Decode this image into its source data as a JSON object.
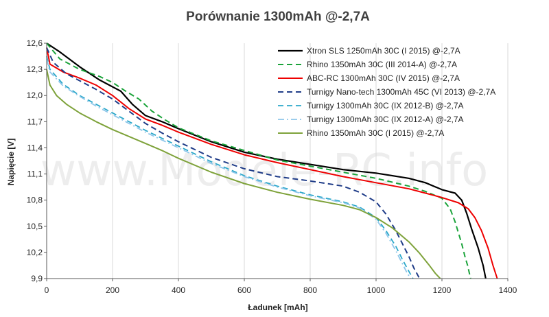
{
  "chart_data": {
    "type": "line",
    "title": "Porównanie 1300mAh @-2,7A",
    "xlabel": "Ładunek [mAh]",
    "ylabel": "Napięcie [V]",
    "xlim": [
      0,
      1400
    ],
    "ylim": [
      9.9,
      12.6
    ],
    "xticks": [
      0,
      200,
      400,
      600,
      800,
      1000,
      1200,
      1400
    ],
    "xtick_labels": [
      "0",
      "200",
      "400",
      "600",
      "800",
      "1000",
      "1200",
      "1400"
    ],
    "yticks": [
      9.9,
      10.2,
      10.5,
      10.8,
      11.1,
      11.4,
      11.7,
      12.0,
      12.3,
      12.6
    ],
    "ytick_labels": [
      "9,9",
      "10,2",
      "10,5",
      "10,8",
      "11,1",
      "11,4",
      "11,7",
      "12,0",
      "12,3",
      "12,6"
    ],
    "grid": "vertical",
    "legend_position": "top-right",
    "watermark": "www.Modele-RC.info",
    "series": [
      {
        "name": "Xtron SLS 1250mAh 30C (I 2015) @-2,7A",
        "color": "#000000",
        "dash": "solid",
        "width": 2.2,
        "x": [
          0,
          40,
          100,
          160,
          225,
          260,
          300,
          350,
          400,
          500,
          600,
          700,
          800,
          900,
          1000,
          1100,
          1150,
          1200,
          1240,
          1260,
          1275,
          1290,
          1310,
          1325,
          1333
        ],
        "y": [
          12.6,
          12.5,
          12.33,
          12.18,
          12.05,
          11.9,
          11.77,
          11.7,
          11.62,
          11.47,
          11.35,
          11.27,
          11.21,
          11.15,
          11.11,
          11.05,
          11.0,
          10.92,
          10.88,
          10.8,
          10.65,
          10.47,
          10.25,
          10.05,
          9.9
        ]
      },
      {
        "name": "Rhino 1350mAh 30C (III 2014-A) @-2,7A",
        "color": "#1aa33a",
        "dash": "dashed",
        "width": 2.0,
        "x": [
          0,
          40,
          100,
          160,
          200,
          240,
          280,
          320,
          360,
          400,
          500,
          600,
          700,
          800,
          900,
          1000,
          1100,
          1150,
          1200,
          1225,
          1240,
          1260,
          1270,
          1278,
          1284,
          1287
        ],
        "y": [
          12.6,
          12.42,
          12.3,
          12.22,
          12.15,
          12.05,
          11.96,
          11.82,
          11.72,
          11.63,
          11.48,
          11.37,
          11.26,
          11.19,
          11.12,
          11.05,
          10.96,
          10.9,
          10.82,
          10.7,
          10.55,
          10.3,
          10.15,
          10.05,
          9.95,
          9.9
        ]
      },
      {
        "name": "ABC-RC 1300mAh 30C (IV 2015) @-2,7A",
        "color": "#ee0000",
        "dash": "solid",
        "width": 2.0,
        "x": [
          0,
          10,
          50,
          100,
          150,
          200,
          250,
          300,
          350,
          400,
          500,
          600,
          700,
          800,
          900,
          1000,
          1100,
          1150,
          1200,
          1250,
          1280,
          1300,
          1320,
          1340,
          1355,
          1368
        ],
        "y": [
          12.55,
          12.36,
          12.27,
          12.2,
          12.12,
          12.0,
          11.85,
          11.73,
          11.66,
          11.58,
          11.44,
          11.32,
          11.23,
          11.15,
          11.07,
          11.0,
          10.93,
          10.88,
          10.83,
          10.77,
          10.7,
          10.6,
          10.45,
          10.25,
          10.05,
          9.9
        ]
      },
      {
        "name": "Turnigy Nano-tech 1300mAh 45C (VI 2013) @-2,7A",
        "color": "#1f3c88",
        "dash": "dashed",
        "width": 2.0,
        "x": [
          0,
          20,
          60,
          100,
          150,
          200,
          250,
          300,
          350,
          400,
          500,
          600,
          700,
          800,
          900,
          950,
          1000,
          1030,
          1060,
          1080,
          1100,
          1115,
          1125,
          1132
        ],
        "y": [
          12.55,
          12.38,
          12.25,
          12.17,
          12.07,
          11.96,
          11.82,
          11.68,
          11.57,
          11.47,
          11.29,
          11.16,
          11.07,
          11.02,
          10.96,
          10.89,
          10.78,
          10.64,
          10.45,
          10.3,
          10.15,
          10.02,
          9.95,
          9.9
        ]
      },
      {
        "name": "Turnigy 1300mAh 30C (IX 2012-B) @-2,7A",
        "color": "#2aa7c9",
        "dash": "dashed",
        "width": 1.8,
        "x": [
          0,
          10,
          50,
          100,
          150,
          200,
          250,
          300,
          350,
          400,
          500,
          600,
          700,
          800,
          900,
          950,
          1000,
          1030,
          1060,
          1080,
          1100,
          1112
        ],
        "y": [
          12.45,
          12.3,
          12.13,
          12.0,
          11.9,
          11.8,
          11.7,
          11.6,
          11.51,
          11.42,
          11.24,
          11.08,
          10.96,
          10.86,
          10.78,
          10.72,
          10.6,
          10.45,
          10.27,
          10.12,
          9.98,
          9.9
        ]
      },
      {
        "name": "Turnigy 1300mAh 30C (IX 2012-A) @-2,7A",
        "color": "#8ec6ea",
        "dash": "dashdot",
        "width": 1.8,
        "x": [
          0,
          10,
          50,
          100,
          150,
          200,
          250,
          300,
          350,
          400,
          500,
          600,
          700,
          800,
          900,
          950,
          1000,
          1030,
          1060,
          1080,
          1095,
          1105
        ],
        "y": [
          12.42,
          12.27,
          12.11,
          11.99,
          11.88,
          11.78,
          11.68,
          11.58,
          11.49,
          11.4,
          11.22,
          11.07,
          10.95,
          10.85,
          10.77,
          10.71,
          10.58,
          10.42,
          10.22,
          10.07,
          9.96,
          9.9
        ]
      },
      {
        "name": "Rhino 1350mAh 30C (I 2015) @-2,7A",
        "color": "#7ea23a",
        "dash": "solid",
        "width": 2.0,
        "x": [
          0,
          10,
          30,
          60,
          100,
          150,
          200,
          250,
          300,
          350,
          400,
          500,
          600,
          700,
          800,
          900,
          950,
          1000,
          1050,
          1100,
          1130,
          1160,
          1180,
          1195
        ],
        "y": [
          12.3,
          12.12,
          12.0,
          11.9,
          11.8,
          11.7,
          11.61,
          11.53,
          11.45,
          11.37,
          11.28,
          11.12,
          10.99,
          10.89,
          10.81,
          10.74,
          10.69,
          10.6,
          10.48,
          10.32,
          10.2,
          10.06,
          9.96,
          9.9
        ]
      }
    ]
  }
}
